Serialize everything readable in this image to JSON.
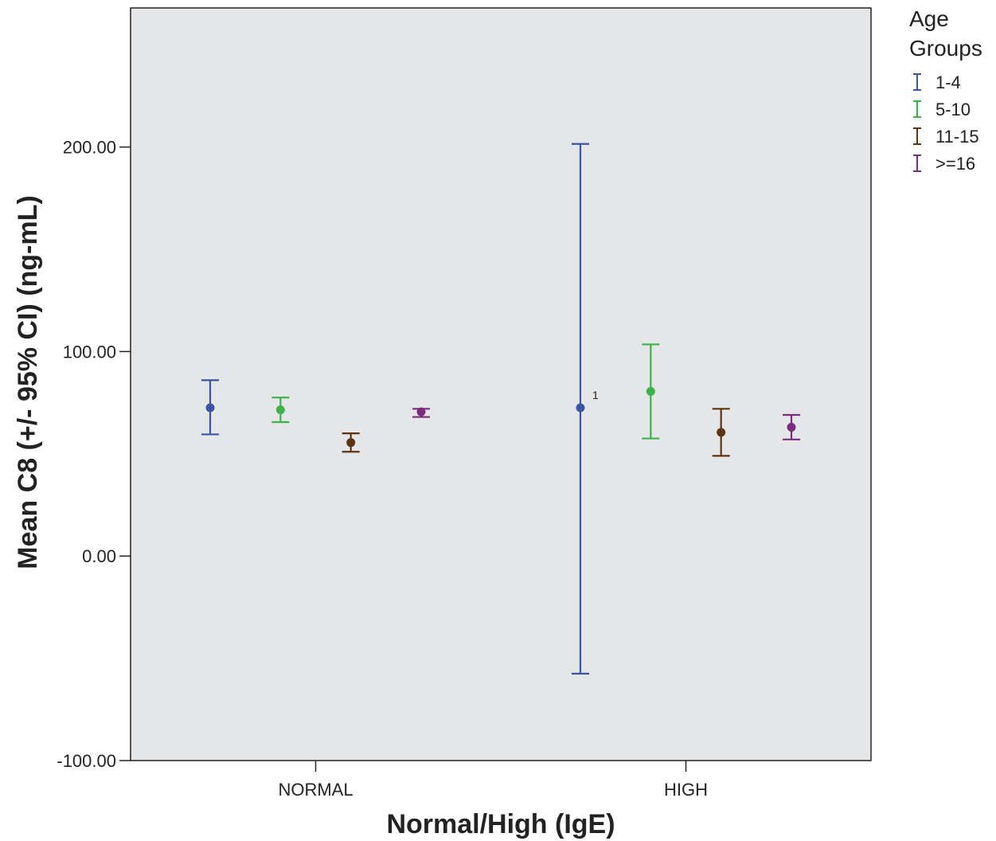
{
  "chart_data": {
    "type": "errorbar",
    "xlabel": "Normal/High (IgE)",
    "ylabel": "Mean C8 (+/- 95% CI) (ng-mL)",
    "categories": [
      "NORMAL",
      "HIGH"
    ],
    "ylim": [
      -100,
      268
    ],
    "yticks": [
      -100,
      0,
      100,
      200
    ],
    "ytick_labels": [
      "-100.00",
      "0.00",
      "100.00",
      "200.00"
    ],
    "grid": false,
    "legend": {
      "title_lines": [
        "Age",
        "Groups"
      ],
      "position": "right"
    },
    "series": [
      {
        "name": "1-4",
        "color": "#3c54a5",
        "means": [
          72.5,
          72.5
        ],
        "lower": [
          59.5,
          -57.5
        ],
        "upper": [
          86.0,
          201.5
        ],
        "annotations": [
          "",
          "1"
        ]
      },
      {
        "name": "5-10",
        "color": "#3db14a",
        "means": [
          71.5,
          80.5
        ],
        "lower": [
          65.5,
          57.5
        ],
        "upper": [
          77.5,
          103.5
        ],
        "annotations": [
          "",
          ""
        ]
      },
      {
        "name": "11-15",
        "color": "#5b3413",
        "means": [
          55.5,
          60.5
        ],
        "lower": [
          51.0,
          49.0
        ],
        "upper": [
          60.0,
          72.0
        ],
        "annotations": [
          "",
          ""
        ]
      },
      {
        "name": ">=16",
        "color": "#7b2c7f",
        "means": [
          70.5,
          63.0
        ],
        "lower": [
          68.0,
          57.0
        ],
        "upper": [
          72.0,
          69.0
        ],
        "annotations": [
          "",
          ""
        ]
      }
    ]
  }
}
